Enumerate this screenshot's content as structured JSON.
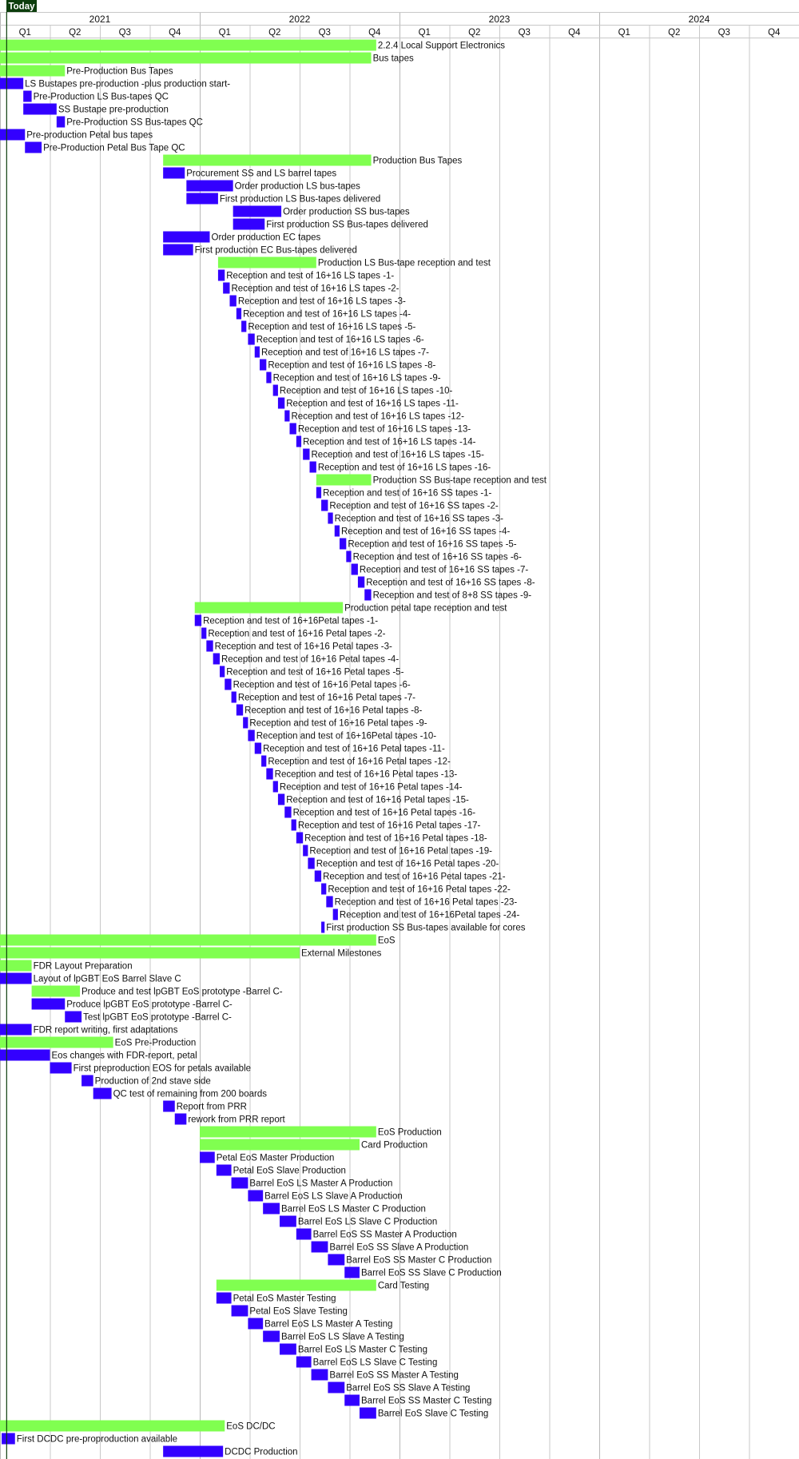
{
  "today_label": "Today",
  "colors": {
    "summary": "#80ff50",
    "task": "#3300ff",
    "today": "#0c3d0c",
    "grid": "#c8c8c8",
    "text": "#111111"
  },
  "chart_data": {
    "type": "gantt",
    "years": [
      "2021",
      "2022",
      "2023",
      "2024"
    ],
    "quarters": [
      "Q1",
      "Q2",
      "Q3",
      "Q4",
      "Q1",
      "Q2",
      "Q3",
      "Q4",
      "Q1",
      "Q2",
      "Q3",
      "Q4",
      "Q1",
      "Q2",
      "Q3",
      "Q4"
    ],
    "x_unit": "months since 2021-01-01",
    "today": 0.4,
    "rows": [
      {
        "label": "2.2.4 Local Support Electronics",
        "start": 0,
        "end": 22.6,
        "kind": "summary"
      },
      {
        "label": "Bus tapes",
        "start": 0,
        "end": 22.3,
        "kind": "summary"
      },
      {
        "label": "Pre-Production Bus Tapes",
        "start": 0,
        "end": 3.9,
        "kind": "summary"
      },
      {
        "label": "LS Bustapes pre-production -plus production start-",
        "start": 0,
        "end": 1.4,
        "kind": "task"
      },
      {
        "label": "Pre-Production LS Bus-tapes QC",
        "start": 1.4,
        "end": 1.9,
        "kind": "task"
      },
      {
        "label": "SS Bustape pre-production",
        "start": 1.4,
        "end": 3.4,
        "kind": "task"
      },
      {
        "label": "Pre-Production SS Bus-tapes QC",
        "start": 3.4,
        "end": 3.9,
        "kind": "task"
      },
      {
        "label": "Pre-production Petal bus tapes",
        "start": 0,
        "end": 1.5,
        "kind": "task"
      },
      {
        "label": "Pre-Production Petal Bus Tape QC",
        "start": 1.5,
        "end": 2.5,
        "kind": "task"
      },
      {
        "label": "Production Bus Tapes",
        "start": 9.8,
        "end": 22.3,
        "kind": "summary"
      },
      {
        "label": "Procurement SS and LS barrel tapes",
        "start": 9.8,
        "end": 11.1,
        "kind": "task"
      },
      {
        "label": "Order production LS bus-tapes",
        "start": 11.2,
        "end": 14.0,
        "kind": "task"
      },
      {
        "label": "First production LS Bus-tapes delivered",
        "start": 11.2,
        "end": 13.1,
        "kind": "task"
      },
      {
        "label": "Order production SS bus-tapes",
        "start": 14.0,
        "end": 16.9,
        "kind": "task"
      },
      {
        "label": "First production SS Bus-tapes delivered",
        "start": 14.0,
        "end": 15.9,
        "kind": "task"
      },
      {
        "label": "Order production EC tapes",
        "start": 9.8,
        "end": 12.6,
        "kind": "task"
      },
      {
        "label": "First production EC Bus-tapes delivered",
        "start": 9.8,
        "end": 11.6,
        "kind": "task"
      },
      {
        "label": "Production LS Bus-tape reception and test",
        "start": 13.1,
        "end": 19.0,
        "kind": "summary"
      },
      {
        "label": "Reception and test of 16+16 LS tapes -1-",
        "start": 13.1,
        "end": 13.5,
        "kind": "task"
      },
      {
        "label": "Reception and test of 16+16 LS tapes -2-",
        "start": 13.4,
        "end": 13.8,
        "kind": "task"
      },
      {
        "label": "Reception and test of 16+16 LS tapes -3-",
        "start": 13.8,
        "end": 14.2,
        "kind": "task"
      },
      {
        "label": "Reception and test of 16+16 LS tapes -4-",
        "start": 14.2,
        "end": 14.5,
        "kind": "task"
      },
      {
        "label": "Reception and test of 16+16 LS tapes -5-",
        "start": 14.5,
        "end": 14.8,
        "kind": "task"
      },
      {
        "label": "Reception and test of 16+16 LS tapes -6-",
        "start": 14.9,
        "end": 15.3,
        "kind": "task"
      },
      {
        "label": "Reception and test of 16+16 LS tapes -7-",
        "start": 15.3,
        "end": 15.6,
        "kind": "task"
      },
      {
        "label": "Reception and test of 16+16 LS tapes -8-",
        "start": 15.6,
        "end": 16.0,
        "kind": "task"
      },
      {
        "label": "Reception and test of 16+16 LS tapes -9-",
        "start": 16.0,
        "end": 16.3,
        "kind": "task"
      },
      {
        "label": "Reception and test of 16+16 LS tapes -10-",
        "start": 16.4,
        "end": 16.7,
        "kind": "task"
      },
      {
        "label": "Reception and test of 16+16 LS tapes -11-",
        "start": 16.7,
        "end": 17.1,
        "kind": "task"
      },
      {
        "label": "Reception and test of 16+16 LS tapes -12-",
        "start": 17.1,
        "end": 17.4,
        "kind": "task"
      },
      {
        "label": "Reception and test of 16+16 LS tapes -13-",
        "start": 17.4,
        "end": 17.8,
        "kind": "task"
      },
      {
        "label": "Reception and test of 16+16 LS tapes -14-",
        "start": 17.8,
        "end": 18.1,
        "kind": "task"
      },
      {
        "label": "Reception and test of 16+16 LS tapes -15-",
        "start": 18.2,
        "end": 18.6,
        "kind": "task"
      },
      {
        "label": "Reception and test of 16+16 LS tapes -16-",
        "start": 18.6,
        "end": 19.0,
        "kind": "task"
      },
      {
        "label": "Production SS Bus-tape reception and test",
        "start": 19.0,
        "end": 22.3,
        "kind": "summary"
      },
      {
        "label": "Reception and test of 16+16 SS tapes -1-",
        "start": 19.0,
        "end": 19.3,
        "kind": "task"
      },
      {
        "label": "Reception and test of 16+16 SS tapes -2-",
        "start": 19.3,
        "end": 19.7,
        "kind": "task"
      },
      {
        "label": "Reception and test of 16+16 SS tapes -3-",
        "start": 19.7,
        "end": 20.0,
        "kind": "task"
      },
      {
        "label": "Reception and test of 16+16 SS tapes -4-",
        "start": 20.1,
        "end": 20.4,
        "kind": "task"
      },
      {
        "label": "Reception and test of 16+16 SS tapes -5-",
        "start": 20.4,
        "end": 20.8,
        "kind": "task"
      },
      {
        "label": "Reception and test of 16+16 SS tapes -6-",
        "start": 20.8,
        "end": 21.1,
        "kind": "task"
      },
      {
        "label": "Reception and test of 16+16 SS tapes -7-",
        "start": 21.1,
        "end": 21.5,
        "kind": "task"
      },
      {
        "label": "Reception and test of 16+16 SS tapes -8-",
        "start": 21.5,
        "end": 21.9,
        "kind": "task"
      },
      {
        "label": "Reception and test of 8+8 SS tapes -9-",
        "start": 21.9,
        "end": 22.3,
        "kind": "task"
      },
      {
        "label": "Production petal tape reception and test",
        "start": 11.7,
        "end": 20.6,
        "kind": "summary"
      },
      {
        "label": "Reception and test of 16+16Petal tapes -1-",
        "start": 11.7,
        "end": 12.1,
        "kind": "task"
      },
      {
        "label": "Reception and test of 16+16 Petal tapes -2-",
        "start": 12.1,
        "end": 12.4,
        "kind": "task"
      },
      {
        "label": "Reception and test of 16+16 Petal tapes -3-",
        "start": 12.4,
        "end": 12.8,
        "kind": "task"
      },
      {
        "label": "Reception and test of 16+16 Petal tapes -4-",
        "start": 12.8,
        "end": 13.2,
        "kind": "task"
      },
      {
        "label": "Reception and test of 16+16 Petal tapes -5-",
        "start": 13.2,
        "end": 13.5,
        "kind": "task"
      },
      {
        "label": "Reception and test of 16+16 Petal tapes -6-",
        "start": 13.5,
        "end": 13.9,
        "kind": "task"
      },
      {
        "label": "Reception and test of 16+16 Petal tapes -7-",
        "start": 13.9,
        "end": 14.2,
        "kind": "task"
      },
      {
        "label": "Reception and test of 16+16 Petal tapes -8-",
        "start": 14.2,
        "end": 14.6,
        "kind": "task"
      },
      {
        "label": "Reception and test of 16+16 Petal tapes -9-",
        "start": 14.6,
        "end": 14.9,
        "kind": "task"
      },
      {
        "label": "Reception and test of 16+16Petal tapes -10-",
        "start": 14.9,
        "end": 15.3,
        "kind": "task"
      },
      {
        "label": "Reception and test of 16+16 Petal tapes -11-",
        "start": 15.3,
        "end": 15.7,
        "kind": "task"
      },
      {
        "label": "Reception and test of 16+16 Petal tapes -12-",
        "start": 15.7,
        "end": 16.0,
        "kind": "task"
      },
      {
        "label": "Reception and test of 16+16 Petal tapes -13-",
        "start": 16.0,
        "end": 16.4,
        "kind": "task"
      },
      {
        "label": "Reception and test of 16+16 Petal tapes -14-",
        "start": 16.4,
        "end": 16.7,
        "kind": "task"
      },
      {
        "label": "Reception and test of 16+16 Petal tapes -15-",
        "start": 16.7,
        "end": 17.1,
        "kind": "task"
      },
      {
        "label": "Reception and test of 16+16 Petal tapes -16-",
        "start": 17.1,
        "end": 17.5,
        "kind": "task"
      },
      {
        "label": "Reception and test of 16+16 Petal tapes -17-",
        "start": 17.5,
        "end": 17.8,
        "kind": "task"
      },
      {
        "label": "Reception and test of 16+16 Petal tapes -18-",
        "start": 17.8,
        "end": 18.2,
        "kind": "task"
      },
      {
        "label": "Reception and test of 16+16 Petal tapes -19-",
        "start": 18.2,
        "end": 18.5,
        "kind": "task"
      },
      {
        "label": "Reception and test of 16+16 Petal tapes -20-",
        "start": 18.5,
        "end": 18.9,
        "kind": "task"
      },
      {
        "label": "Reception and test of 16+16 Petal tapes -21-",
        "start": 18.9,
        "end": 19.3,
        "kind": "task"
      },
      {
        "label": "Reception and test of 16+16 Petal tapes -22-",
        "start": 19.3,
        "end": 19.6,
        "kind": "task"
      },
      {
        "label": "Reception and test of 16+16 Petal tapes -23-",
        "start": 19.6,
        "end": 20.0,
        "kind": "task"
      },
      {
        "label": "Reception and test of 16+16Petal tapes -24-",
        "start": 20.0,
        "end": 20.3,
        "kind": "task"
      },
      {
        "label": "First production SS Bus-tapes available for cores",
        "start": 19.3,
        "end": 19.5,
        "kind": "task"
      },
      {
        "label": "EoS",
        "start": 0,
        "end": 22.6,
        "kind": "summary"
      },
      {
        "label": "External Milestones",
        "start": 0,
        "end": 18.0,
        "kind": "summary"
      },
      {
        "label": "FDR Layout Preparation",
        "start": 0,
        "end": 1.9,
        "kind": "summary"
      },
      {
        "label": "Layout of lpGBT EoS Barrel Slave C",
        "start": 0,
        "end": 1.9,
        "kind": "task"
      },
      {
        "label": "Produce and test lpGBT EoS prototype -Barrel C-",
        "start": 1.9,
        "end": 4.8,
        "kind": "summary"
      },
      {
        "label": "Produce lpGBT EoS prototype -Barrel C-",
        "start": 1.9,
        "end": 3.9,
        "kind": "task"
      },
      {
        "label": "Test lpGBT EoS prototype -Barrel C-",
        "start": 3.9,
        "end": 4.9,
        "kind": "task"
      },
      {
        "label": "FDR report writing, first adaptations",
        "start": 0,
        "end": 1.9,
        "kind": "task"
      },
      {
        "label": "EoS Pre-Production",
        "start": 0,
        "end": 6.8,
        "kind": "summary"
      },
      {
        "label": "Eos changes with FDR-report, petal",
        "start": 0,
        "end": 3.0,
        "kind": "task"
      },
      {
        "label": "First preproduction EOS for petals available",
        "start": 3.0,
        "end": 4.3,
        "kind": "task"
      },
      {
        "label": "Production of 2nd stave side",
        "start": 4.9,
        "end": 5.6,
        "kind": "task"
      },
      {
        "label": "QC test of remaining from 200 boards",
        "start": 5.6,
        "end": 6.7,
        "kind": "task"
      },
      {
        "label": "Report from PRR",
        "start": 9.8,
        "end": 10.5,
        "kind": "task"
      },
      {
        "label": "rework from PRR report",
        "start": 10.5,
        "end": 11.2,
        "kind": "task"
      },
      {
        "label": "EoS Production",
        "start": 12.0,
        "end": 22.6,
        "kind": "summary"
      },
      {
        "label": "Card Production",
        "start": 12.0,
        "end": 21.6,
        "kind": "summary"
      },
      {
        "label": "Petal EoS Master Production",
        "start": 12.0,
        "end": 12.9,
        "kind": "task"
      },
      {
        "label": "Petal EoS Slave Production",
        "start": 13.0,
        "end": 13.9,
        "kind": "task"
      },
      {
        "label": "Barrel EoS LS Master A Production",
        "start": 13.9,
        "end": 14.9,
        "kind": "task"
      },
      {
        "label": "Barrel EoS LS Slave A Production",
        "start": 14.9,
        "end": 15.8,
        "kind": "task"
      },
      {
        "label": "Barrel EoS LS Master C Production",
        "start": 15.8,
        "end": 16.8,
        "kind": "task"
      },
      {
        "label": "Barrel EoS LS Slave C Production",
        "start": 16.8,
        "end": 17.8,
        "kind": "task"
      },
      {
        "label": "Barrel EoS SS Master A Production",
        "start": 17.8,
        "end": 18.7,
        "kind": "task"
      },
      {
        "label": "Barrel EoS SS Slave A Production",
        "start": 18.7,
        "end": 19.7,
        "kind": "task"
      },
      {
        "label": "Barrel EoS SS Master C Production",
        "start": 19.7,
        "end": 20.7,
        "kind": "task"
      },
      {
        "label": "Barrel EoS SS Slave C Production",
        "start": 20.7,
        "end": 21.6,
        "kind": "task"
      },
      {
        "label": "Card Testing",
        "start": 13.0,
        "end": 22.6,
        "kind": "summary"
      },
      {
        "label": "Petal EoS Master Testing",
        "start": 13.0,
        "end": 13.9,
        "kind": "task"
      },
      {
        "label": "Petal EoS Slave Testing",
        "start": 13.9,
        "end": 14.9,
        "kind": "task"
      },
      {
        "label": "Barrel EoS LS Master A Testing",
        "start": 14.9,
        "end": 15.8,
        "kind": "task"
      },
      {
        "label": "Barrel EoS LS Slave A Testing",
        "start": 15.8,
        "end": 16.8,
        "kind": "task"
      },
      {
        "label": "Barrel EoS LS Master C Testing",
        "start": 16.8,
        "end": 17.8,
        "kind": "task"
      },
      {
        "label": "Barrel EoS LS Slave C Testing",
        "start": 17.8,
        "end": 18.7,
        "kind": "task"
      },
      {
        "label": "Barrel EoS SS Master A Testing",
        "start": 18.7,
        "end": 19.7,
        "kind": "task"
      },
      {
        "label": "Barrel EoS SS Slave A Testing",
        "start": 19.7,
        "end": 20.7,
        "kind": "task"
      },
      {
        "label": "Barrel EoS SS Master C Testing",
        "start": 20.7,
        "end": 21.6,
        "kind": "task"
      },
      {
        "label": "Barrel EoS Slave C Testing",
        "start": 21.6,
        "end": 22.6,
        "kind": "task"
      },
      {
        "label": "EoS DC/DC",
        "start": 0,
        "end": 13.5,
        "kind": "summary"
      },
      {
        "label": "First DCDC pre-proproduction available",
        "start": 0.1,
        "end": 0.9,
        "kind": "task"
      },
      {
        "label": "DCDC Production",
        "start": 9.8,
        "end": 13.4,
        "kind": "task"
      }
    ]
  }
}
